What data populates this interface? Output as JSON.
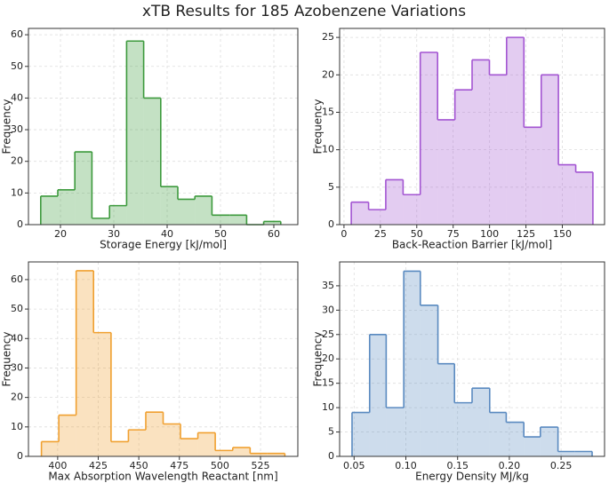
{
  "title": "xTB Results for 185 Azobenzene Variations",
  "chart_data": [
    {
      "type": "histogram",
      "xlabel": "Storage Energy [kJ/mol]",
      "ylabel": "Frequency",
      "color": "#3d9a3d",
      "bins": [
        16.3,
        19.5,
        22.7,
        25.9,
        29.2,
        32.4,
        35.6,
        38.8,
        42.0,
        45.2,
        48.4,
        51.7,
        54.9,
        58.1,
        61.3
      ],
      "values": [
        9,
        11,
        23,
        2,
        6,
        58,
        40,
        12,
        8,
        9,
        3,
        3,
        0,
        1
      ],
      "xlim": [
        14,
        64.5
      ],
      "ylim": [
        0,
        62
      ],
      "xticks": [
        20,
        30,
        40,
        50,
        60
      ],
      "yticks": [
        0,
        10,
        20,
        30,
        40,
        50,
        60
      ],
      "grid": true
    },
    {
      "type": "histogram",
      "xlabel": "Back-Reaction Barrier [kJ/mol]",
      "ylabel": "Frequency",
      "color": "#a355d2",
      "bins": [
        5,
        16.9,
        28.7,
        40.6,
        52.4,
        64.3,
        76.2,
        88.0,
        99.9,
        111.7,
        123.6,
        135.5,
        147.3,
        159.2,
        171
      ],
      "values": [
        3,
        2,
        6,
        4,
        23,
        14,
        18,
        22,
        20,
        25,
        13,
        20,
        8,
        7
      ],
      "xlim": [
        -3,
        179
      ],
      "ylim": [
        0,
        26.2
      ],
      "xticks": [
        0,
        25,
        50,
        75,
        100,
        125,
        150
      ],
      "yticks": [
        0,
        5,
        10,
        15,
        20,
        25
      ],
      "grid": true
    },
    {
      "type": "histogram",
      "xlabel": "Max Absorption Wavelength Reactant [nm]",
      "ylabel": "Frequency",
      "color": "#f0a030",
      "bins": [
        390,
        400.7,
        411.4,
        422.1,
        432.9,
        443.6,
        454.3,
        465.0,
        475.7,
        486.4,
        497.1,
        507.9,
        518.6,
        529.3,
        540
      ],
      "values": [
        5,
        14,
        63,
        42,
        5,
        9,
        15,
        11,
        6,
        8,
        2,
        3,
        1,
        1
      ],
      "xlim": [
        382,
        548
      ],
      "ylim": [
        0,
        66
      ],
      "xticks": [
        400,
        425,
        450,
        475,
        500,
        525
      ],
      "yticks": [
        0,
        10,
        20,
        30,
        40,
        50,
        60
      ],
      "grid": true
    },
    {
      "type": "histogram",
      "xlabel": "Energy Density MJ/kg",
      "ylabel": "Frequency",
      "color": "#5a8ac0",
      "bins": [
        0.048,
        0.065,
        0.081,
        0.098,
        0.114,
        0.131,
        0.147,
        0.164,
        0.181,
        0.197,
        0.214,
        0.23,
        0.247,
        0.263,
        0.28
      ],
      "values": [
        9,
        25,
        10,
        38,
        31,
        19,
        11,
        14,
        9,
        7,
        4,
        6,
        1,
        1
      ],
      "xlim": [
        0.036,
        0.292
      ],
      "ylim": [
        0,
        39.9
      ],
      "xticks": [
        {
          "value": 0.05,
          "label": "0.05"
        },
        {
          "value": 0.1,
          "label": "0.10"
        },
        {
          "value": 0.15,
          "label": "0.15"
        },
        {
          "value": 0.2,
          "label": "0.20"
        },
        {
          "value": 0.25,
          "label": "0.25"
        }
      ],
      "yticks": [
        0,
        5,
        10,
        15,
        20,
        25,
        30,
        35
      ],
      "grid": true
    }
  ]
}
